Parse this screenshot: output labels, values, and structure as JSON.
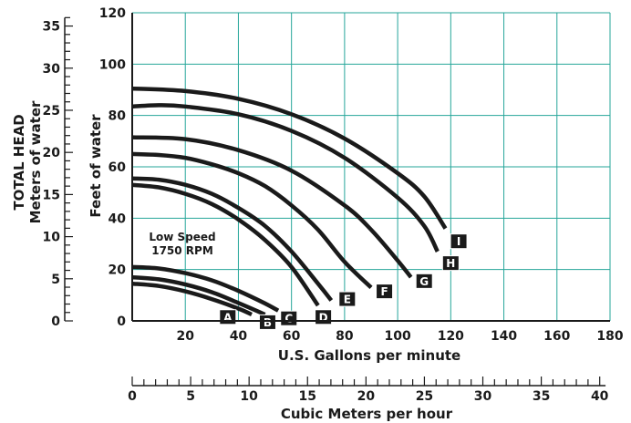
{
  "chart_data": {
    "type": "line",
    "ylabel_outer": "TOTAL HEAD",
    "ylabel_outer2": "Meters of water",
    "ylabel": "Feet of water",
    "xlabel": "U.S. Gallons per minute",
    "xlabel2": "Cubic Meters per hour",
    "xlim": [
      0,
      180
    ],
    "ylim": [
      0,
      120
    ],
    "x_ticks": [
      "20",
      "40",
      "60",
      "80",
      "100",
      "120",
      "140",
      "160",
      "180"
    ],
    "y_ticks": [
      "0",
      "20",
      "40",
      "60",
      "80",
      "100",
      "120"
    ],
    "meters_ticks": [
      "0",
      "5",
      "10",
      "15",
      "20",
      "25",
      "30",
      "35"
    ],
    "cubic_ticks": [
      "0",
      "5",
      "10",
      "15",
      "20",
      "25",
      "30",
      "35",
      "40"
    ],
    "annotation": [
      "Low Speed",
      "1750 RPM"
    ],
    "grid": true,
    "series": [
      {
        "name": "A",
        "x": [
          0,
          10,
          20,
          30,
          40,
          45
        ],
        "y": [
          14.5,
          13.6,
          11.5,
          8.5,
          4.8,
          2.5
        ]
      },
      {
        "name": "B",
        "x": [
          0,
          10,
          20,
          30,
          40,
          50
        ],
        "y": [
          17,
          16.2,
          14.2,
          11.2,
          7,
          2.5
        ]
      },
      {
        "name": "C",
        "x": [
          0,
          10,
          20,
          30,
          40,
          50,
          55
        ],
        "y": [
          21,
          20.4,
          18.6,
          15.8,
          11.7,
          6.8,
          4
        ]
      },
      {
        "name": "D",
        "x": [
          0,
          10,
          20,
          30,
          40,
          50,
          60,
          70
        ],
        "y": [
          53,
          52,
          49.5,
          45.5,
          39.5,
          31.5,
          21,
          6
        ]
      },
      {
        "name": "E",
        "x": [
          0,
          10,
          20,
          30,
          40,
          50,
          60,
          70,
          75
        ],
        "y": [
          55.5,
          55,
          53,
          49.5,
          44,
          37,
          27,
          14.5,
          8
        ]
      },
      {
        "name": "F",
        "x": [
          0,
          10,
          20,
          30,
          40,
          50,
          60,
          70,
          80,
          90
        ],
        "y": [
          65,
          64.6,
          63.5,
          61,
          57.5,
          52.5,
          45,
          35.5,
          23,
          13
        ]
      },
      {
        "name": "G",
        "x": [
          0,
          20,
          40,
          60,
          80,
          90,
          100,
          105
        ],
        "y": [
          71.5,
          70.8,
          66.5,
          58.5,
          45,
          35.5,
          23.5,
          17
        ]
      },
      {
        "name": "H",
        "x": [
          0,
          10,
          20,
          40,
          60,
          80,
          100,
          110,
          115
        ],
        "y": [
          83.5,
          84,
          83.5,
          80.5,
          74,
          63.5,
          48,
          37,
          27
        ]
      },
      {
        "name": "I",
        "x": [
          0,
          20,
          40,
          60,
          80,
          100,
          110,
          118
        ],
        "y": [
          90.5,
          89.5,
          86.5,
          80.5,
          71,
          57.5,
          48.5,
          36
        ]
      }
    ],
    "label_positions": [
      {
        "name": "A",
        "x": 36,
        "y": 1.5
      },
      {
        "name": "B",
        "x": 51,
        "y": -0.5
      },
      {
        "name": "C",
        "x": 59,
        "y": 1
      },
      {
        "name": "D",
        "x": 72,
        "y": 1.5
      },
      {
        "name": "E",
        "x": 81,
        "y": 8.5
      },
      {
        "name": "F",
        "x": 95,
        "y": 11.5
      },
      {
        "name": "G",
        "x": 110,
        "y": 15.5
      },
      {
        "name": "H",
        "x": 120,
        "y": 22.5
      },
      {
        "name": "I",
        "x": 123,
        "y": 31
      }
    ],
    "colors": {
      "grid": "#26a69a",
      "ink": "#1a1a1a",
      "curve": "#1a1a1a",
      "tag_bg": "#1a1a1a",
      "tag_fg": "#ffffff"
    }
  }
}
